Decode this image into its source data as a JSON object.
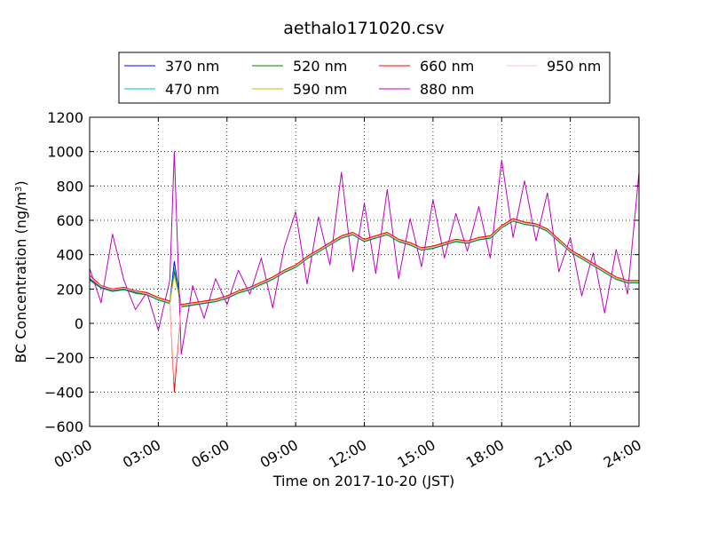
{
  "chart_data": {
    "type": "line",
    "title": "aethalo171020.csv",
    "xlabel": "Time on 2017-10-20 (JST)",
    "ylabel": "BC Concentration (ng/m",
    "ylabel_sup": "3",
    "ylabel_end": ")",
    "x_unit": "hours",
    "xlim": [
      0,
      24
    ],
    "ylim": [
      -600,
      1200
    ],
    "grid": true,
    "legend_position": "top, outside plot, 4 columns",
    "x_ticks": [
      {
        "value": 0,
        "label": "00:00"
      },
      {
        "value": 3,
        "label": "03:00"
      },
      {
        "value": 6,
        "label": "06:00"
      },
      {
        "value": 9,
        "label": "09:00"
      },
      {
        "value": 12,
        "label": "12:00"
      },
      {
        "value": 15,
        "label": "15:00"
      },
      {
        "value": 18,
        "label": "18:00"
      },
      {
        "value": 21,
        "label": "21:00"
      },
      {
        "value": 24,
        "label": "24:00"
      }
    ],
    "y_ticks": [
      {
        "value": 1200,
        "label": "1200"
      },
      {
        "value": 1000,
        "label": "1000"
      },
      {
        "value": 800,
        "label": "800"
      },
      {
        "value": 600,
        "label": "600"
      },
      {
        "value": 400,
        "label": "400"
      },
      {
        "value": 200,
        "label": "200"
      },
      {
        "value": 0,
        "label": "0"
      },
      {
        "value": -200,
        "label": "−200"
      },
      {
        "value": -400,
        "label": "−400"
      },
      {
        "value": -600,
        "label": "−600"
      }
    ],
    "x": [
      0.0,
      0.5,
      1.0,
      1.5,
      2.0,
      2.5,
      3.0,
      3.5,
      3.7,
      4.0,
      4.5,
      5.0,
      5.5,
      6.0,
      6.5,
      7.0,
      7.5,
      8.0,
      8.5,
      9.0,
      9.5,
      10.0,
      10.5,
      11.0,
      11.5,
      12.0,
      12.5,
      13.0,
      13.5,
      14.0,
      14.5,
      15.0,
      15.5,
      16.0,
      16.5,
      17.0,
      17.5,
      18.0,
      18.5,
      19.0,
      19.5,
      20.0,
      20.5,
      21.0,
      21.5,
      22.0,
      22.5,
      23.0,
      23.5,
      24.0
    ],
    "series": [
      {
        "name": "370 nm",
        "color": "#0000ff",
        "values": [
          260,
          210,
          190,
          200,
          180,
          170,
          140,
          120,
          360,
          100,
          110,
          120,
          130,
          150,
          180,
          200,
          230,
          260,
          300,
          330,
          380,
          420,
          460,
          500,
          520,
          480,
          500,
          520,
          480,
          460,
          430,
          440,
          460,
          480,
          470,
          490,
          500,
          560,
          600,
          580,
          570,
          540,
          480,
          420,
          380,
          340,
          300,
          260,
          240,
          240
        ]
      },
      {
        "name": "470 nm",
        "color": "#00bfbf",
        "values": [
          250,
          205,
          185,
          195,
          175,
          165,
          135,
          115,
          320,
          95,
          105,
          115,
          125,
          145,
          175,
          195,
          225,
          255,
          295,
          325,
          375,
          415,
          455,
          495,
          515,
          475,
          495,
          515,
          475,
          455,
          425,
          435,
          455,
          475,
          465,
          485,
          495,
          555,
          595,
          575,
          565,
          535,
          475,
          415,
          375,
          335,
          295,
          255,
          235,
          235
        ]
      },
      {
        "name": "520 nm",
        "color": "#008000",
        "values": [
          255,
          208,
          188,
          198,
          178,
          168,
          138,
          118,
          300,
          98,
          108,
          118,
          128,
          148,
          178,
          198,
          228,
          258,
          298,
          328,
          378,
          418,
          458,
          498,
          518,
          478,
          498,
          518,
          478,
          458,
          428,
          438,
          458,
          478,
          468,
          488,
          498,
          558,
          598,
          578,
          568,
          538,
          478,
          418,
          378,
          338,
          298,
          258,
          238,
          238
        ]
      },
      {
        "name": "590 nm",
        "color": "#bfbf00",
        "values": [
          265,
          215,
          195,
          205,
          185,
          175,
          145,
          125,
          280,
          105,
          115,
          125,
          135,
          155,
          185,
          205,
          235,
          265,
          305,
          335,
          385,
          425,
          465,
          505,
          525,
          485,
          505,
          525,
          485,
          465,
          435,
          445,
          465,
          485,
          475,
          495,
          505,
          565,
          605,
          585,
          575,
          545,
          485,
          425,
          385,
          345,
          305,
          265,
          245,
          245
        ]
      },
      {
        "name": "660 nm",
        "color": "#ff0000",
        "values": [
          280,
          220,
          200,
          210,
          190,
          180,
          150,
          130,
          -400,
          110,
          120,
          130,
          140,
          160,
          190,
          210,
          240,
          270,
          310,
          340,
          390,
          430,
          470,
          510,
          530,
          490,
          510,
          530,
          490,
          470,
          440,
          450,
          470,
          490,
          480,
          500,
          510,
          570,
          610,
          590,
          580,
          550,
          490,
          430,
          390,
          350,
          310,
          270,
          250,
          250
        ]
      },
      {
        "name": "880 nm",
        "color": "#bf00bf",
        "values": [
          320,
          120,
          520,
          250,
          80,
          180,
          -40,
          250,
          1000,
          -180,
          220,
          30,
          260,
          110,
          310,
          170,
          380,
          90,
          440,
          650,
          230,
          620,
          340,
          880,
          300,
          700,
          290,
          780,
          260,
          610,
          330,
          720,
          380,
          640,
          420,
          680,
          380,
          950,
          500,
          830,
          480,
          760,
          300,
          500,
          160,
          410,
          60,
          430,
          170,
          880
        ]
      },
      {
        "name": "950 nm",
        "color": "#ffc0cb",
        "values": [
          270,
          215,
          195,
          205,
          185,
          172,
          142,
          122,
          -340,
          102,
          112,
          122,
          132,
          152,
          182,
          202,
          232,
          262,
          302,
          332,
          382,
          422,
          462,
          502,
          522,
          482,
          502,
          522,
          482,
          462,
          432,
          442,
          462,
          482,
          472,
          492,
          502,
          562,
          602,
          582,
          572,
          542,
          482,
          422,
          382,
          342,
          302,
          262,
          242,
          242
        ]
      }
    ]
  }
}
